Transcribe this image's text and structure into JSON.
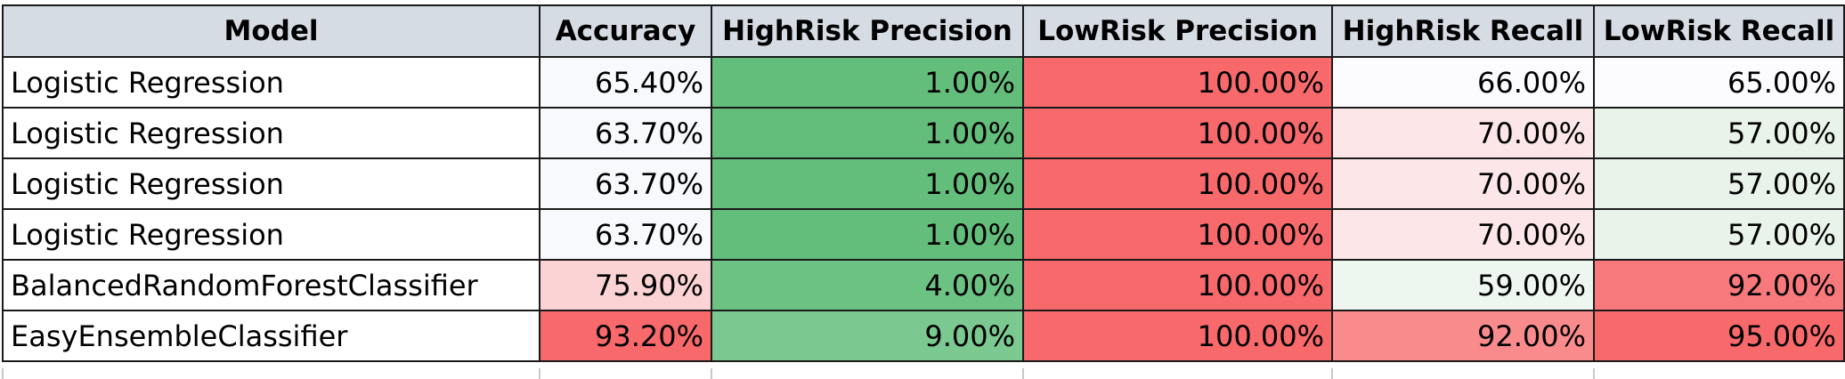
{
  "table": {
    "columns": [
      "Model",
      "Accuracy",
      "HighRisk Precision",
      "LowRisk Precision",
      "HighRisk Recall",
      "LowRisk Recall"
    ],
    "rows": [
      {
        "cells": [
          "Logistic Regression",
          "65.40%",
          "1.00%",
          "100.00%",
          "66.00%",
          "65.00%"
        ],
        "colors": [
          "#ffffff",
          "#f8f9fc",
          "#63be7b",
          "#f8696b",
          "#fcfcff",
          "#fcfcff"
        ]
      },
      {
        "cells": [
          "Logistic Regression",
          "63.70%",
          "1.00%",
          "100.00%",
          "70.00%",
          "57.00%"
        ],
        "colors": [
          "#ffffff",
          "#f8f9fc",
          "#63be7b",
          "#f8696b",
          "#fce6e8",
          "#e8f3ea"
        ]
      },
      {
        "cells": [
          "Logistic Regression",
          "63.70%",
          "1.00%",
          "100.00%",
          "70.00%",
          "57.00%"
        ],
        "colors": [
          "#ffffff",
          "#f8f9fc",
          "#63be7b",
          "#f8696b",
          "#fce6e8",
          "#e8f3ea"
        ]
      },
      {
        "cells": [
          "Logistic Regression",
          "63.70%",
          "1.00%",
          "100.00%",
          "70.00%",
          "57.00%"
        ],
        "colors": [
          "#ffffff",
          "#f8f9fc",
          "#63be7b",
          "#f8696b",
          "#fce6e8",
          "#e8f3ea"
        ]
      },
      {
        "cells": [
          "BalancedRandomForestClassifier",
          "75.90%",
          "4.00%",
          "100.00%",
          "59.00%",
          "92.00%"
        ],
        "colors": [
          "#ffffff",
          "#fbd3d5",
          "#6cc283",
          "#f8696b",
          "#eef6f0",
          "#f8797b"
        ]
      },
      {
        "cells": [
          "EasyEnsembleClassifier",
          "93.20%",
          "9.00%",
          "100.00%",
          "92.00%",
          "95.00%"
        ],
        "colors": [
          "#ffffff",
          "#f8696b",
          "#7bc891",
          "#f8696b",
          "#f98b8d",
          "#f8696b"
        ]
      }
    ]
  }
}
